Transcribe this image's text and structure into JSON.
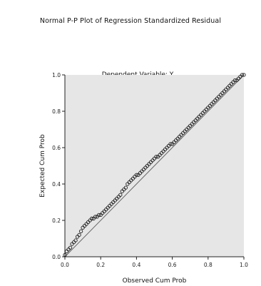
{
  "title": "Normal P-P Plot of Regression Standardized Residual",
  "subtitle": "Dependent Variable: Y",
  "chart_data": {
    "type": "scatter",
    "title": "Normal P-P Plot of Regression Standardized Residual",
    "subtitle": "Dependent Variable: Y",
    "xlabel": "Observed Cum Prob",
    "ylabel": "Expected Cum Prob",
    "xlim": [
      0,
      1
    ],
    "ylim": [
      0,
      1
    ],
    "x_ticks": [
      "0.0",
      "0.2",
      "0.4",
      "0.6",
      "0.8",
      "1.0"
    ],
    "y_ticks": [
      "0.0",
      "0.2",
      "0.4",
      "0.6",
      "0.8",
      "1.0"
    ],
    "grid": false,
    "legend": "none",
    "reference_line": {
      "from": [
        0,
        0
      ],
      "to": [
        1,
        1
      ]
    },
    "background_color": "#e6e6e6",
    "series": [
      {
        "x": [
          0.0,
          0.01,
          0.02,
          0.03,
          0.04,
          0.05,
          0.06,
          0.07,
          0.08,
          0.09,
          0.1,
          0.11,
          0.12,
          0.13,
          0.14,
          0.15,
          0.16,
          0.17,
          0.18,
          0.19,
          0.2,
          0.21,
          0.22,
          0.23,
          0.24,
          0.25,
          0.26,
          0.27,
          0.28,
          0.29,
          0.3,
          0.31,
          0.32,
          0.33,
          0.34,
          0.35,
          0.36,
          0.37,
          0.38,
          0.39,
          0.4,
          0.41,
          0.42,
          0.43,
          0.44,
          0.45,
          0.46,
          0.47,
          0.48,
          0.49,
          0.5,
          0.51,
          0.52,
          0.53,
          0.54,
          0.55,
          0.56,
          0.57,
          0.58,
          0.59,
          0.6,
          0.61,
          0.62,
          0.63,
          0.64,
          0.65,
          0.66,
          0.67,
          0.68,
          0.69,
          0.7,
          0.71,
          0.72,
          0.73,
          0.74,
          0.75,
          0.76,
          0.77,
          0.78,
          0.79,
          0.8,
          0.81,
          0.82,
          0.83,
          0.84,
          0.85,
          0.86,
          0.87,
          0.88,
          0.89,
          0.9,
          0.91,
          0.92,
          0.93,
          0.94,
          0.95,
          0.96,
          0.97,
          0.98,
          0.99,
          1.0
        ],
        "y": [
          0.01,
          0.03,
          0.04,
          0.05,
          0.07,
          0.08,
          0.09,
          0.11,
          0.12,
          0.14,
          0.16,
          0.17,
          0.18,
          0.19,
          0.2,
          0.21,
          0.21,
          0.22,
          0.22,
          0.23,
          0.23,
          0.24,
          0.25,
          0.26,
          0.27,
          0.28,
          0.29,
          0.3,
          0.31,
          0.32,
          0.33,
          0.34,
          0.36,
          0.37,
          0.38,
          0.4,
          0.41,
          0.42,
          0.43,
          0.44,
          0.45,
          0.45,
          0.46,
          0.47,
          0.48,
          0.49,
          0.5,
          0.51,
          0.52,
          0.53,
          0.54,
          0.55,
          0.55,
          0.56,
          0.57,
          0.58,
          0.59,
          0.6,
          0.61,
          0.62,
          0.62,
          0.63,
          0.64,
          0.65,
          0.66,
          0.67,
          0.68,
          0.69,
          0.7,
          0.71,
          0.72,
          0.73,
          0.74,
          0.75,
          0.76,
          0.77,
          0.78,
          0.79,
          0.8,
          0.81,
          0.82,
          0.83,
          0.84,
          0.85,
          0.86,
          0.87,
          0.88,
          0.89,
          0.9,
          0.91,
          0.92,
          0.93,
          0.94,
          0.95,
          0.96,
          0.97,
          0.97,
          0.98,
          0.99,
          1.0,
          1.0
        ]
      }
    ]
  }
}
